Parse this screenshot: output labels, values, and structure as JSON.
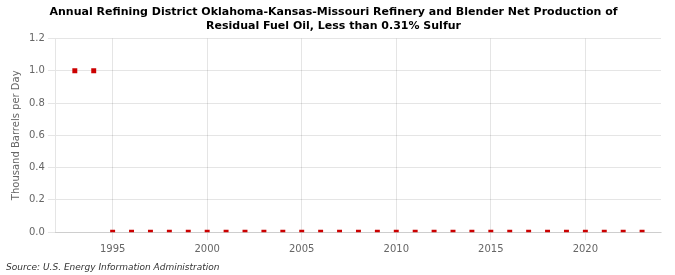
{
  "chart_data": {
    "type": "scatter",
    "title": "Annual Refining District Oklahoma-Kansas-Missouri Refinery and Blender Net Production of\nResidual Fuel Oil, Less than 0.31% Sulfur",
    "ylabel": "Thousand Barrels per Day",
    "annotation": "Source: U.S. Energy Information Administration",
    "x": [
      1993,
      1994,
      1995,
      1996,
      1997,
      1998,
      1999,
      2000,
      2001,
      2002,
      2003,
      2004,
      2005,
      2006,
      2007,
      2008,
      2009,
      2010,
      2011,
      2012,
      2013,
      2014,
      2015,
      2016,
      2017,
      2018,
      2019,
      2020,
      2021,
      2022,
      2023
    ],
    "values": [
      1.0,
      1.0,
      0.0,
      0.0,
      0.0,
      0.0,
      0.0,
      0.0,
      0.0,
      0.0,
      0.0,
      0.0,
      0.0,
      0.0,
      0.0,
      0.0,
      0.0,
      0.0,
      0.0,
      0.0,
      0.0,
      0.0,
      0.0,
      0.0,
      0.0,
      0.0,
      0.0,
      0.0,
      0.0,
      0.0,
      0.0
    ],
    "color": "#cc0000",
    "marker": "square",
    "xlim": [
      1992,
      2024
    ],
    "xticks": [
      1995,
      2000,
      2005,
      2010,
      2015,
      2020
    ],
    "ylim": [
      0.0,
      1.2
    ],
    "yticks": [
      {
        "value": 0.0,
        "label": "0.0"
      },
      0.2,
      0.4,
      0.6,
      0.8,
      {
        "value": 1.0,
        "label": "1.0"
      },
      1.2
    ],
    "grid": true
  }
}
